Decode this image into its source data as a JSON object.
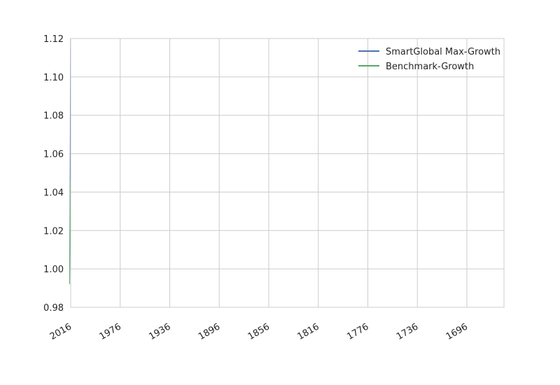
{
  "chart_data": {
    "type": "line",
    "title": "",
    "xlabel": "",
    "ylabel": "",
    "x_ticks": [
      "2016",
      "1976",
      "1936",
      "1896",
      "1856",
      "1816",
      "1776",
      "1736",
      "1696"
    ],
    "x_range": [
      2016,
      1666
    ],
    "ylim": [
      0.98,
      1.12
    ],
    "y_ticks": [
      "0.98",
      "1.00",
      "1.02",
      "1.04",
      "1.06",
      "1.08",
      "1.10",
      "1.12"
    ],
    "grid": true,
    "legend_position": "top-right",
    "series": [
      {
        "name": "SmartGlobal Max-Growth",
        "color": "#4c72b0",
        "x": [
          2016.9,
          2016.8,
          2016.7,
          2016.6,
          2016.5,
          2016.4,
          2016.3,
          2016.2,
          2016.1
        ],
        "y": [
          0.993,
          1.0,
          1.015,
          1.03,
          1.045,
          1.06,
          1.08,
          1.1,
          1.12
        ]
      },
      {
        "name": "Benchmark-Growth",
        "color": "#55a868",
        "x": [
          2016.9,
          2016.8,
          2016.7,
          2016.6,
          2016.5,
          2016.4,
          2016.3
        ],
        "y": [
          0.992,
          0.998,
          1.008,
          1.02,
          1.03,
          1.04,
          1.046
        ]
      }
    ]
  }
}
